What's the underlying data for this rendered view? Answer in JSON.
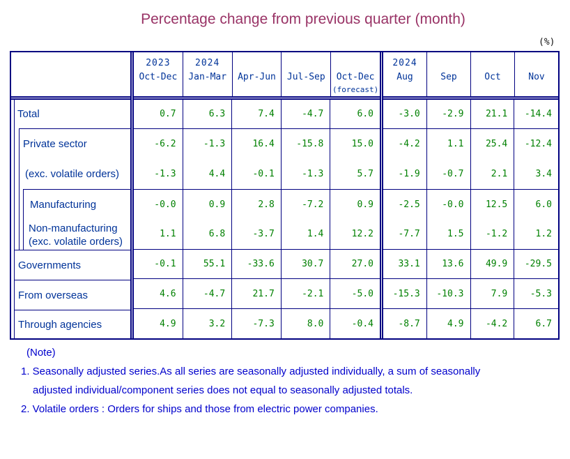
{
  "title": "Percentage change from previous quarter (month)",
  "unit_label": "(%)",
  "colors": {
    "title": "#993366",
    "border": "#000080",
    "row_label": "#003399",
    "value": "#008000",
    "note": "#0000CC"
  },
  "table": {
    "columns": {
      "quarters": [
        {
          "key": "2023-oct-dec",
          "year": "2023",
          "period": "Oct-Dec",
          "sub": ""
        },
        {
          "key": "2024-jan-mar",
          "year": "2024",
          "period": "Jan-Mar",
          "sub": ""
        },
        {
          "key": "apr-jun",
          "year": "",
          "period": "Apr-Jun",
          "sub": ""
        },
        {
          "key": "jul-sep",
          "year": "",
          "period": "Jul-Sep",
          "sub": ""
        },
        {
          "key": "oct-dec-forecast",
          "year": "",
          "period": "Oct-Dec",
          "sub": "(forecast)"
        }
      ],
      "months": [
        {
          "key": "aug",
          "year": "2024",
          "period": "Aug",
          "sub": ""
        },
        {
          "key": "sep",
          "year": "",
          "period": "Sep",
          "sub": ""
        },
        {
          "key": "oct",
          "year": "",
          "period": "Oct",
          "sub": ""
        },
        {
          "key": "nov",
          "year": "",
          "period": "Nov",
          "sub": ""
        }
      ]
    },
    "rows": [
      {
        "key": "total",
        "label": "Total",
        "values": [
          "0.7",
          "6.3",
          "7.4",
          "-4.7",
          "6.0",
          "-3.0",
          "-2.9",
          "21.1",
          "-14.4"
        ]
      },
      {
        "key": "private-sector",
        "label": "Private sector",
        "values": [
          "-6.2",
          "-1.3",
          "16.4",
          "-15.8",
          "15.0",
          "-4.2",
          "1.1",
          "25.4",
          "-12.4"
        ]
      },
      {
        "key": "private-exc-volatile",
        "label": "(exc. volatile orders)",
        "values": [
          "-1.3",
          "4.4",
          "-0.1",
          "-1.3",
          "5.7",
          "-1.9",
          "-0.7",
          "2.1",
          "3.4"
        ]
      },
      {
        "key": "manufacturing",
        "label": "Manufacturing",
        "values": [
          "-0.0",
          "0.9",
          "2.8",
          "-7.2",
          "0.9",
          "-2.5",
          "-0.0",
          "12.5",
          "6.0"
        ]
      },
      {
        "key": "non-manufacturing",
        "label": "Non-manufacturing",
        "label2": "(exc. volatile orders)",
        "values": [
          "1.1",
          "6.8",
          "-3.7",
          "1.4",
          "12.2",
          "-7.7",
          "1.5",
          "-1.2",
          "1.2"
        ]
      },
      {
        "key": "governments",
        "label": "Governments",
        "values": [
          "-0.1",
          "55.1",
          "-33.6",
          "30.7",
          "27.0",
          "33.1",
          "13.6",
          "49.9",
          "-29.5"
        ]
      },
      {
        "key": "from-overseas",
        "label": "From overseas",
        "values": [
          "4.6",
          "-4.7",
          "21.7",
          "-2.1",
          "-5.0",
          "-15.3",
          "-10.3",
          "7.9",
          "-5.3"
        ]
      },
      {
        "key": "through-agencies",
        "label": "Through agencies",
        "values": [
          "4.9",
          "3.2",
          "-7.3",
          "8.0",
          "-0.4",
          "-8.7",
          "4.9",
          "-4.2",
          "6.7"
        ]
      }
    ]
  },
  "notes": {
    "heading": "(Note)",
    "line1": "1. Seasonally adjusted series.As all series are seasonally adjusted individually,  a sum of seasonally",
    "line1b": "adjusted individual/component series does not equal to seasonally adjusted totals.",
    "line2": "2. Volatile orders : Orders for ships and those from electric power companies."
  }
}
